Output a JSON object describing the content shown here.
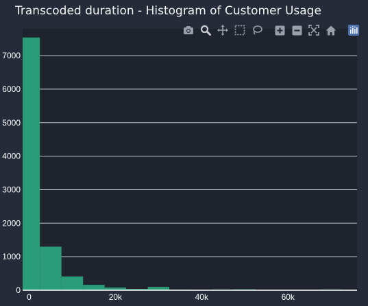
{
  "chart_data": {
    "type": "histogram",
    "title": "Transcoded duration - Histogram of Customer Usage",
    "xlabel": "",
    "ylabel": "",
    "xlim": [
      -1500,
      76000
    ],
    "ylim": [
      0,
      7800
    ],
    "bin_width": 5000,
    "bin_start": -2500,
    "values": [
      7540,
      1300,
      410,
      160,
      80,
      40,
      100,
      15,
      10,
      20,
      25,
      10,
      5,
      10,
      20
    ],
    "x_ticks": [
      0,
      20000,
      40000,
      60000
    ],
    "x_tick_labels": [
      "0",
      "20k",
      "40k",
      "60k"
    ],
    "y_ticks": [
      0,
      1000,
      2000,
      3000,
      4000,
      5000,
      6000,
      7000
    ],
    "y_tick_labels": [
      "0",
      "1000",
      "2000",
      "3000",
      "4000",
      "5000",
      "6000",
      "7000"
    ],
    "grid": true,
    "colors": {
      "bar": "#2a9d78",
      "plot_bg": "#1f232d",
      "paper_bg": "#252b39",
      "grid": "#c8ccd4",
      "tick_text": "#ffffff",
      "modebar_icon": "#9aa0aa",
      "modebar_active": "#c9ccd2",
      "logo": "#4e72b0"
    }
  },
  "modebar": [
    {
      "name": "camera-icon"
    },
    {
      "name": "zoom-icon"
    },
    {
      "name": "pan-icon"
    },
    {
      "name": "box-select-icon"
    },
    {
      "name": "lasso-select-icon"
    },
    {
      "name": "zoom-in-icon"
    },
    {
      "name": "zoom-out-icon"
    },
    {
      "name": "autoscale-icon"
    },
    {
      "name": "reset-axes-icon"
    },
    {
      "name": "plotly-logo-icon"
    }
  ]
}
